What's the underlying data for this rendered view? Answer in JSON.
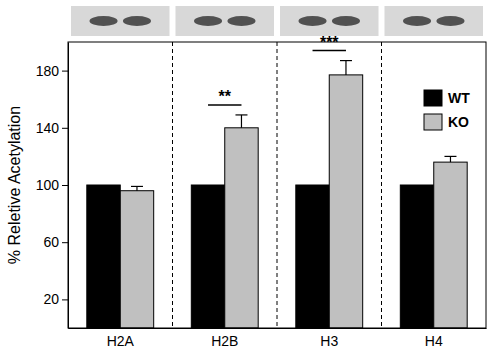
{
  "chart_data": {
    "type": "bar",
    "y_label": "% Reletive Acetylation",
    "categories": [
      "H2A",
      "H2B",
      "H3",
      "H4"
    ],
    "series": [
      {
        "name": "WT",
        "color": "#000000",
        "values": [
          100,
          100,
          100,
          100
        ]
      },
      {
        "name": "KO",
        "color": "#c0c0c0",
        "values": [
          96,
          140,
          177,
          116
        ],
        "errors": [
          3,
          9,
          10,
          4
        ]
      }
    ],
    "ylim": [
      0,
      200
    ],
    "yticks": [
      20,
      60,
      100,
      140,
      180
    ],
    "legend": "upper right",
    "grid": false,
    "annotations": [
      {
        "text": "**",
        "category": "H2B"
      },
      {
        "text": "***",
        "category": "H3"
      }
    ]
  }
}
